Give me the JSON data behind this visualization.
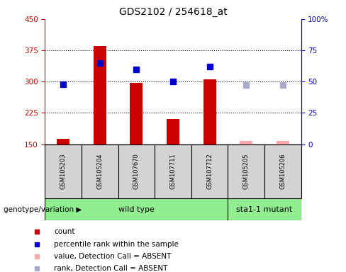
{
  "title": "GDS2102 / 254618_at",
  "samples": [
    "GSM105203",
    "GSM105204",
    "GSM107670",
    "GSM107711",
    "GSM107712",
    "GSM105205",
    "GSM105206"
  ],
  "bar_values": [
    162,
    385,
    297,
    210,
    305,
    null,
    null
  ],
  "bar_color_present": "#cc0000",
  "bar_color_absent": "#ffaaaa",
  "absent_bar_values": [
    null,
    null,
    null,
    null,
    null,
    158,
    158
  ],
  "rank_present": [
    48,
    65,
    60,
    50,
    62,
    null,
    null
  ],
  "rank_absent": [
    null,
    null,
    null,
    null,
    null,
    47,
    47
  ],
  "ylim_left": [
    150,
    450
  ],
  "ylim_right": [
    0,
    100
  ],
  "yticks_left": [
    150,
    225,
    300,
    375,
    450
  ],
  "yticks_right": [
    0,
    25,
    50,
    75,
    100
  ],
  "yticklabels_right": [
    "0",
    "25",
    "50",
    "75",
    "100%"
  ],
  "grid_values": [
    225,
    300,
    375
  ],
  "n_wildtype": 5,
  "n_mutant": 2,
  "wildtype_label": "wild type",
  "mutant_label": "sta1-1 mutant",
  "genotype_label": "genotype/variation",
  "legend_items": [
    {
      "label": "count",
      "color": "#cc0000"
    },
    {
      "label": "percentile rank within the sample",
      "color": "#0000cc"
    },
    {
      "label": "value, Detection Call = ABSENT",
      "color": "#ffaaaa"
    },
    {
      "label": "rank, Detection Call = ABSENT",
      "color": "#aaaacc"
    }
  ],
  "bar_width": 0.35,
  "marker_size": 6,
  "left_axis_color": "#cc0000",
  "right_axis_color": "#0000cc",
  "sample_box_color": "#d3d3d3",
  "wildtype_box_color": "#90ee90",
  "mutant_box_color": "#90ee90"
}
